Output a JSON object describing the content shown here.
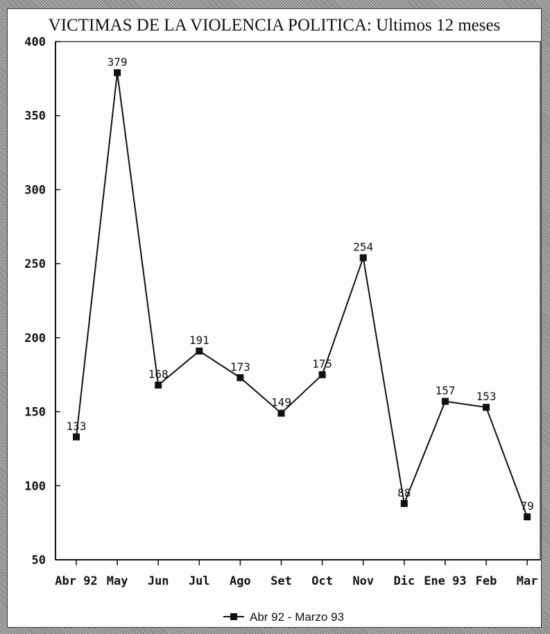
{
  "chart_data": {
    "type": "line",
    "title": "VICTIMAS DE LA VIOLENCIA POLITICA: Ultimos 12 meses",
    "categories": [
      "Abr 92",
      "May",
      "Jun",
      "Jul",
      "Ago",
      "Set",
      "Oct",
      "Nov",
      "Dic",
      "Ene 93",
      "Feb",
      "Mar"
    ],
    "series": [
      {
        "name": "Abr 92 - Marzo 93",
        "values": [
          133,
          379,
          168,
          191,
          173,
          149,
          175,
          254,
          88,
          157,
          153,
          79
        ],
        "labels": [
          "133",
          "379",
          "168",
          "191",
          "173",
          "149",
          "175",
          "254",
          "88",
          "157",
          "153",
          "79"
        ]
      }
    ],
    "yticks": [
      50,
      100,
      150,
      200,
      250,
      300,
      350,
      400
    ],
    "ylim": [
      50,
      400
    ],
    "xlabel": "",
    "ylabel": "",
    "grid": false,
    "legend_position": "bottom",
    "line_color": "#111111",
    "marker": "square"
  }
}
